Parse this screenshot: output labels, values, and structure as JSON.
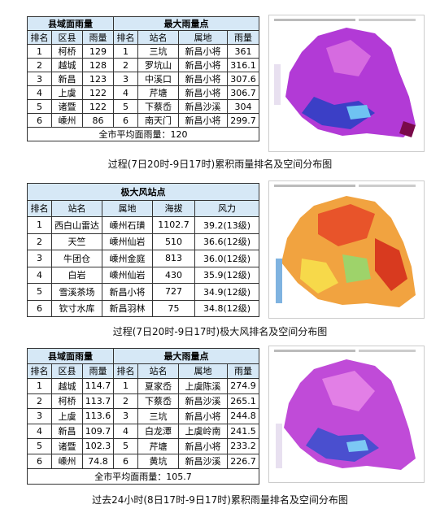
{
  "sections": [
    {
      "table": {
        "group_headers": [
          "县域面雨量",
          "最大雨量点"
        ],
        "group_spans": [
          3,
          4
        ],
        "columns": [
          "排名",
          "区县",
          "雨量",
          "排名",
          "站名",
          "属地",
          "雨量"
        ],
        "rows": [
          [
            "1",
            "柯桥",
            "129",
            "1",
            "三坑",
            "新昌小将",
            "361"
          ],
          [
            "2",
            "越城",
            "128",
            "2",
            "罗坑山",
            "新昌小将",
            "316.1"
          ],
          [
            "3",
            "新昌",
            "123",
            "3",
            "中溪口",
            "新昌小将",
            "307.6"
          ],
          [
            "4",
            "上虞",
            "122",
            "4",
            "芹塘",
            "新昌小将",
            "306.7"
          ],
          [
            "5",
            "诸暨",
            "122",
            "5",
            "下蔡岙",
            "新昌沙溪",
            "304"
          ],
          [
            "6",
            "嵊州",
            "86",
            "6",
            "南天门",
            "新昌小将",
            "299.7"
          ]
        ],
        "footer": "全市平均面雨量：120"
      },
      "caption": "过程(7日20时-9日17时)累积雨量排名及空间分布图"
    },
    {
      "table": {
        "group_headers": [
          "极大风站点"
        ],
        "group_spans": [
          5
        ],
        "columns": [
          "排名",
          "站名",
          "属地",
          "海拔",
          "风力"
        ],
        "rows": [
          [
            "1",
            "西白山雷达",
            "嵊州石璜",
            "1102.7",
            "39.2(13级)"
          ],
          [
            "2",
            "天竺",
            "嵊州仙岩",
            "510",
            "36.6(12级)"
          ],
          [
            "3",
            "牛团仓",
            "嵊州金庭",
            "813",
            "36.0(12级)"
          ],
          [
            "4",
            "白岩",
            "嵊州仙岩",
            "430",
            "35.9(12级)"
          ],
          [
            "5",
            "雪溪茶场",
            "新昌小将",
            "727",
            "34.9(12级)"
          ],
          [
            "6",
            "钦寸水库",
            "新昌羽林",
            "75",
            "34.8(12级)"
          ]
        ]
      },
      "caption": "过程(7日20时-9日17时)极大风排名及空间分布图"
    },
    {
      "table": {
        "group_headers": [
          "县域面雨量",
          "最大雨量点"
        ],
        "group_spans": [
          3,
          4
        ],
        "columns": [
          "排名",
          "区县",
          "雨量",
          "排名",
          "站名",
          "属地",
          "雨量"
        ],
        "rows": [
          [
            "1",
            "越城",
            "114.7",
            "1",
            "夏家岙",
            "上虞陈溪",
            "274.9"
          ],
          [
            "2",
            "柯桥",
            "113.7",
            "2",
            "下蔡岙",
            "新昌沙溪",
            "265.1"
          ],
          [
            "3",
            "上虞",
            "113.6",
            "3",
            "三坑",
            "新昌小将",
            "244.8"
          ],
          [
            "4",
            "新昌",
            "109.7",
            "4",
            "白龙潭",
            "上虞岭南",
            "241.5"
          ],
          [
            "5",
            "诸暨",
            "102.3",
            "5",
            "芹塘",
            "新昌小将",
            "233.2"
          ],
          [
            "6",
            "嵊州",
            "74.8",
            "6",
            "黄坑",
            "新昌沙溪",
            "226.7"
          ]
        ],
        "footer": "全市平均面雨量：105.7"
      },
      "caption": "过去24小时(8日17时-9日17时)累积雨量排名及空间分布图"
    }
  ]
}
